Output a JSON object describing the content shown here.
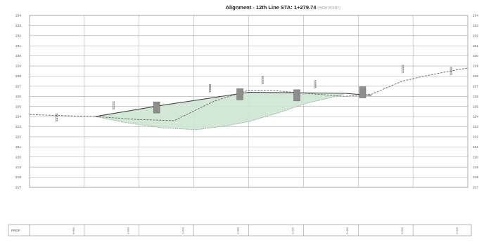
{
  "chart_data": {
    "type": "line",
    "title": "Alignment - 12th Line STA: 1+279.74",
    "title_note": "(HIGH POINT)",
    "xlabel": "",
    "ylabel": "",
    "ylim": [
      217,
      234
    ],
    "y_ticks": [
      217,
      218,
      219,
      220,
      221,
      222,
      223,
      224,
      225,
      226,
      227,
      228,
      229,
      230,
      231,
      232,
      233,
      234
    ],
    "xlim": [
      0,
      100
    ],
    "grid": true,
    "series": [
      {
        "key": "existing-ground",
        "x": [
          0,
          7,
          15,
          25,
          33,
          42,
          50,
          55,
          60,
          66,
          72,
          78,
          85,
          90,
          96,
          100
        ],
        "y": [
          224.2,
          224.1,
          224.0,
          223.7,
          223.6,
          225.5,
          226.6,
          226.6,
          226.4,
          226.2,
          226.0,
          226.2,
          227.5,
          228.0,
          228.5,
          228.8
        ]
      },
      {
        "key": "proposed-grade",
        "x": [
          15,
          30,
          50,
          72,
          78
        ],
        "y": [
          224.0,
          225.1,
          226.4,
          226.3,
          226.1
        ]
      },
      {
        "key": "cut-bottom",
        "x": [
          15,
          22,
          30,
          38,
          45,
          50,
          57,
          63,
          70,
          72
        ],
        "y": [
          224.0,
          223.4,
          222.9,
          222.7,
          223.1,
          223.5,
          224.4,
          225.3,
          226.0,
          226.3
        ]
      }
    ],
    "structures": [
      {
        "x": 29,
        "y": 224.9
      },
      {
        "x": 48,
        "y": 226.2
      },
      {
        "x": 61,
        "y": 226.1
      },
      {
        "x": 76,
        "y": 226.4
      }
    ],
    "elevation_tags": [
      {
        "x": 6,
        "y": 224.3
      },
      {
        "x": 19,
        "y": 225.5
      },
      {
        "x": 41,
        "y": 227.2
      },
      {
        "x": 53,
        "y": 228.0
      },
      {
        "x": 65,
        "y": 227.6
      },
      {
        "x": 85,
        "y": 229.1
      },
      {
        "x": 96,
        "y": 228.9
      }
    ],
    "profile_label": "PROF",
    "stations": [
      "0+960",
      "1+000",
      "1+040",
      "1+080",
      "1+120",
      "1+160",
      "1+200",
      "1+240"
    ]
  }
}
